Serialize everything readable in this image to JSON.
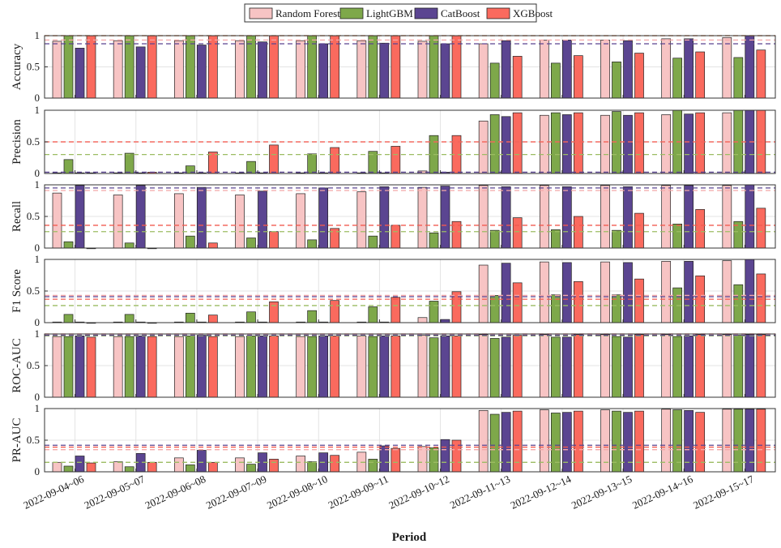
{
  "chart_data": {
    "type": "bar",
    "xlabel": "Period",
    "categories": [
      "2022-09-04~06",
      "2022-09-05~07",
      "2022-09-06~08",
      "2022-09-07~09",
      "2022-09-08~10",
      "2022-09-09~11",
      "2022-09-10~12",
      "2022-09-11~13",
      "2022-09-12~14",
      "2022-09-13~15",
      "2022-09-14~16",
      "2022-09-15~17"
    ],
    "legend": {
      "position": "top-center",
      "items": [
        {
          "name": "Random Forest",
          "color": "#f7c4c4"
        },
        {
          "name": "LightGBM",
          "color": "#7ea84a"
        },
        {
          "name": "CatBoost",
          "color": "#5b4591"
        },
        {
          "name": "XGBoost",
          "color": "#fa6a5e"
        }
      ]
    },
    "yticks": [
      0,
      0.5,
      1
    ],
    "ytick_labels": [
      "0",
      "0.5",
      "1"
    ],
    "grid": true,
    "reference_line_colors": {
      "Random Forest": "#f4a7a7",
      "LightGBM": "#9cbc63",
      "CatBoost": "#5b4591",
      "XGBoost": "#f25b50"
    },
    "panels": [
      {
        "ylabel": "Accuracy",
        "ylim": [
          0,
          1
        ],
        "reference_lines": {
          "Random Forest": 0.93,
          "LightGBM": 1.0,
          "CatBoost": 0.87,
          "XGBoost": 1.0
        },
        "series": [
          {
            "name": "Random Forest",
            "values": [
              0.91,
              0.92,
              0.92,
              0.92,
              0.92,
              0.92,
              0.91,
              0.87,
              0.93,
              0.93,
              0.95,
              0.97
            ]
          },
          {
            "name": "LightGBM",
            "values": [
              1.0,
              1.0,
              1.0,
              1.0,
              1.0,
              1.0,
              1.0,
              0.56,
              0.56,
              0.58,
              0.64,
              0.65
            ]
          },
          {
            "name": "CatBoost",
            "values": [
              0.8,
              0.82,
              0.85,
              0.9,
              0.87,
              0.88,
              0.87,
              0.92,
              0.93,
              0.92,
              0.95,
              1.0
            ]
          },
          {
            "name": "XGBoost",
            "values": [
              1.0,
              1.0,
              1.0,
              1.0,
              1.0,
              1.0,
              1.0,
              0.67,
              0.68,
              0.72,
              0.74,
              0.77
            ]
          }
        ]
      },
      {
        "ylabel": "Precision",
        "ylim": [
          0,
          1
        ],
        "reference_lines": {
          "Random Forest": 0.5,
          "LightGBM": 0.3,
          "CatBoost": 0.02,
          "XGBoost": 0.5
        },
        "series": [
          {
            "name": "Random Forest",
            "values": [
              0.01,
              0.01,
              0.01,
              0.01,
              0.01,
              0.01,
              0.04,
              0.83,
              0.92,
              0.92,
              0.93,
              0.96
            ]
          },
          {
            "name": "LightGBM",
            "values": [
              0.22,
              0.32,
              0.12,
              0.19,
              0.31,
              0.35,
              0.6,
              0.93,
              0.96,
              0.98,
              1.0,
              1.0
            ]
          },
          {
            "name": "CatBoost",
            "values": [
              0.01,
              0.01,
              0.01,
              0.01,
              0.01,
              0.01,
              0.02,
              0.9,
              0.93,
              0.92,
              0.94,
              1.0
            ]
          },
          {
            "name": "XGBoost",
            "values": [
              0.01,
              0.02,
              0.34,
              0.45,
              0.41,
              0.43,
              0.6,
              0.96,
              0.96,
              0.96,
              0.96,
              1.0
            ]
          }
        ]
      },
      {
        "ylabel": "Recall",
        "ylim": [
          0,
          1
        ],
        "reference_lines": {
          "Random Forest": 0.91,
          "LightGBM": 0.26,
          "CatBoost": 0.95,
          "XGBoost": 0.36
        },
        "series": [
          {
            "name": "Random Forest",
            "values": [
              0.87,
              0.84,
              0.86,
              0.84,
              0.86,
              0.89,
              0.96,
              0.99,
              0.99,
              0.99,
              0.99,
              0.99
            ]
          },
          {
            "name": "LightGBM",
            "values": [
              0.1,
              0.08,
              0.19,
              0.16,
              0.13,
              0.19,
              0.24,
              0.28,
              0.29,
              0.28,
              0.38,
              0.42
            ]
          },
          {
            "name": "CatBoost",
            "values": [
              0.99,
              0.99,
              0.96,
              0.9,
              0.95,
              0.97,
              0.98,
              0.97,
              0.97,
              0.97,
              0.99,
              1.0
            ]
          },
          {
            "name": "XGBoost",
            "values": [
              0.0,
              0.0,
              0.08,
              0.26,
              0.31,
              0.36,
              0.42,
              0.48,
              0.5,
              0.55,
              0.61,
              0.63
            ]
          }
        ]
      },
      {
        "ylabel": "F1 Score",
        "ylim": [
          0,
          1
        ],
        "reference_lines": {
          "Random Forest": 0.43,
          "LightGBM": 0.27,
          "CatBoost": 0.41,
          "XGBoost": 0.37
        },
        "series": [
          {
            "name": "Random Forest",
            "values": [
              0.01,
              0.01,
              0.01,
              0.01,
              0.01,
              0.01,
              0.08,
              0.91,
              0.96,
              0.96,
              0.97,
              0.98
            ]
          },
          {
            "name": "LightGBM",
            "values": [
              0.13,
              0.13,
              0.15,
              0.17,
              0.19,
              0.25,
              0.34,
              0.43,
              0.44,
              0.44,
              0.55,
              0.6
            ]
          },
          {
            "name": "CatBoost",
            "values": [
              0.01,
              0.01,
              0.01,
              0.01,
              0.01,
              0.01,
              0.05,
              0.94,
              0.95,
              0.95,
              0.97,
              1.0
            ]
          },
          {
            "name": "XGBoost",
            "values": [
              0.0,
              0.0,
              0.12,
              0.33,
              0.35,
              0.4,
              0.49,
              0.63,
              0.65,
              0.69,
              0.74,
              0.77
            ]
          }
        ]
      },
      {
        "ylabel": "ROC-AUC",
        "ylim": [
          0,
          1
        ],
        "reference_lines": {
          "Random Forest": 0.97,
          "LightGBM": 0.97,
          "CatBoost": 0.98,
          "XGBoost": 1.0
        },
        "series": [
          {
            "name": "Random Forest",
            "values": [
              0.96,
              0.96,
              0.96,
              0.96,
              0.96,
              0.97,
              0.98,
              0.99,
              0.99,
              0.99,
              0.99,
              0.99
            ]
          },
          {
            "name": "LightGBM",
            "values": [
              0.96,
              0.96,
              0.97,
              0.97,
              0.96,
              0.96,
              0.94,
              0.93,
              0.95,
              0.96,
              0.96,
              0.98
            ]
          },
          {
            "name": "CatBoost",
            "values": [
              0.97,
              0.97,
              0.98,
              0.97,
              0.97,
              0.97,
              0.97,
              0.95,
              0.95,
              0.95,
              0.97,
              0.99
            ]
          },
          {
            "name": "XGBoost",
            "values": [
              0.95,
              0.96,
              0.96,
              0.97,
              0.97,
              0.97,
              0.97,
              0.98,
              0.99,
              0.99,
              0.99,
              0.99
            ]
          }
        ]
      },
      {
        "ylabel": "PR-AUC",
        "ylim": [
          0,
          1
        ],
        "reference_lines": {
          "Random Forest": 0.35,
          "LightGBM": 0.15,
          "CatBoost": 0.42,
          "XGBoost": 0.39
        },
        "series": [
          {
            "name": "Random Forest",
            "values": [
              0.15,
              0.16,
              0.22,
              0.22,
              0.25,
              0.31,
              0.4,
              0.97,
              0.98,
              0.98,
              0.99,
              0.99
            ]
          },
          {
            "name": "LightGBM",
            "values": [
              0.09,
              0.08,
              0.11,
              0.12,
              0.16,
              0.2,
              0.38,
              0.91,
              0.93,
              0.96,
              0.98,
              0.99
            ]
          },
          {
            "name": "CatBoost",
            "values": [
              0.25,
              0.29,
              0.34,
              0.3,
              0.3,
              0.41,
              0.51,
              0.94,
              0.94,
              0.94,
              0.97,
              0.99
            ]
          },
          {
            "name": "XGBoost",
            "values": [
              0.14,
              0.15,
              0.15,
              0.2,
              0.26,
              0.37,
              0.5,
              0.96,
              0.96,
              0.96,
              0.94,
              0.99
            ]
          }
        ]
      }
    ]
  }
}
